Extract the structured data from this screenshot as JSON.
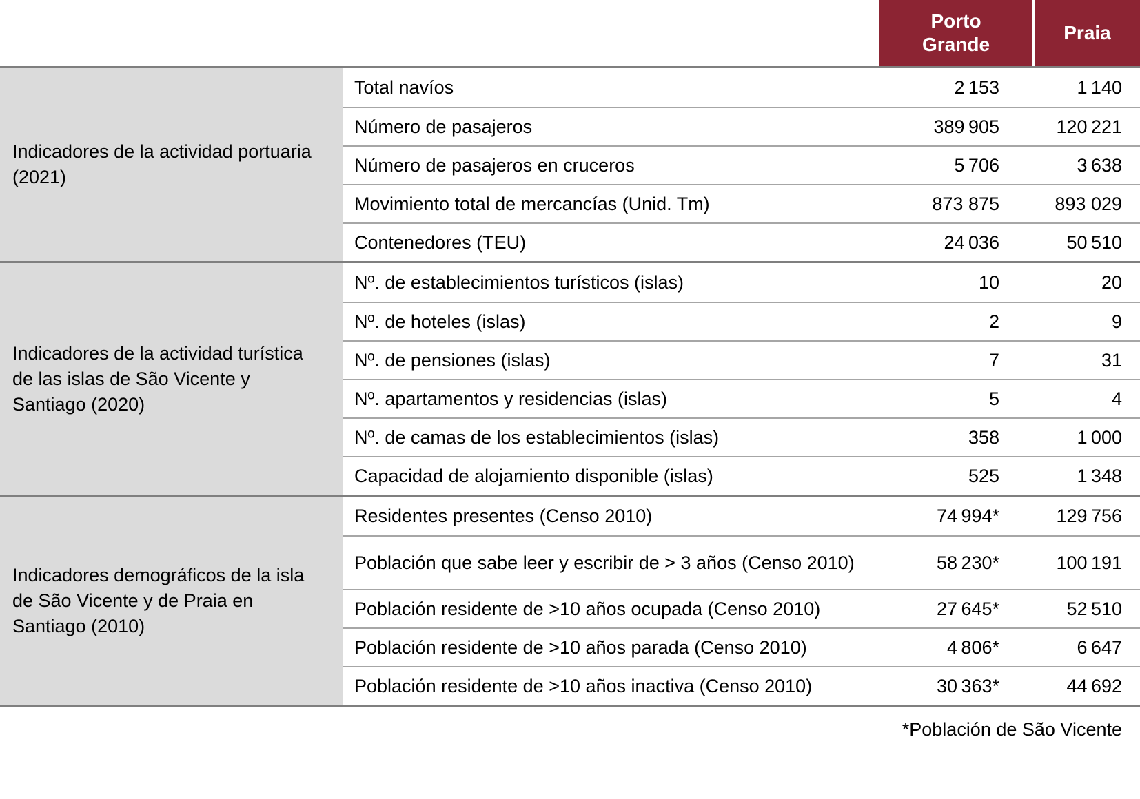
{
  "header": {
    "col_porto": "Porto Grande",
    "col_praia": "Praia"
  },
  "colors": {
    "header_bg": "#8C2433",
    "group_bg": "#DBDBDB",
    "row_line": "#A6A6A6",
    "group_line": "#7F7F7F"
  },
  "groups": [
    {
      "label": "Indicadores de la actividad portuaria (2021)",
      "rows": [
        {
          "label": "Total navíos",
          "porto": "2 153",
          "praia": "1 140"
        },
        {
          "label": "Número de pasajeros",
          "porto": "389 905",
          "praia": "120 221"
        },
        {
          "label": "Número de pasajeros en cruceros",
          "porto": "5 706",
          "praia": "3 638"
        },
        {
          "label": "Movimiento total de mercancías (Unid. Tm)",
          "porto": "873 875",
          "praia": "893 029"
        },
        {
          "label": "Contenedores (TEU)",
          "porto": "24 036",
          "praia": "50 510"
        }
      ]
    },
    {
      "label": "Indicadores de la actividad turística de las islas de São Vicente y Santiago (2020)",
      "rows": [
        {
          "label": "Nº. de establecimientos turísticos (islas)",
          "porto": "10",
          "praia": "20"
        },
        {
          "label": "Nº. de hoteles (islas)",
          "porto": "2",
          "praia": "9"
        },
        {
          "label": "Nº. de pensiones (islas)",
          "porto": "7",
          "praia": "31"
        },
        {
          "label": "Nº. apartamentos y residencias (islas)",
          "porto": "5",
          "praia": "4"
        },
        {
          "label": "Nº. de camas de los establecimientos (islas)",
          "porto": "358",
          "praia": "1 000"
        },
        {
          "label": "Capacidad de alojamiento disponible (islas)",
          "porto": "525",
          "praia": "1 348"
        }
      ]
    },
    {
      "label": "Indicadores demográficos de la isla de São Vicente y de Praia en Santiago (2010)",
      "rows": [
        {
          "label": "Residentes presentes (Censo 2010)",
          "porto": "74 994*",
          "praia": "129 756"
        },
        {
          "label": "Población que sabe leer y escribir de > 3 años (Censo 2010)",
          "porto": "58 230*",
          "praia": "100 191"
        },
        {
          "label": "Población residente de >10 años ocupada (Censo 2010)",
          "porto": "27 645*",
          "praia": "52 510"
        },
        {
          "label": "Población residente de >10 años parada (Censo 2010)",
          "porto": "4 806*",
          "praia": "6 647"
        },
        {
          "label": "Población residente de >10 años inactiva (Censo 2010)",
          "porto": "30 363*",
          "praia": "44 692"
        }
      ]
    }
  ],
  "footnote": "*Población de São Vicente"
}
